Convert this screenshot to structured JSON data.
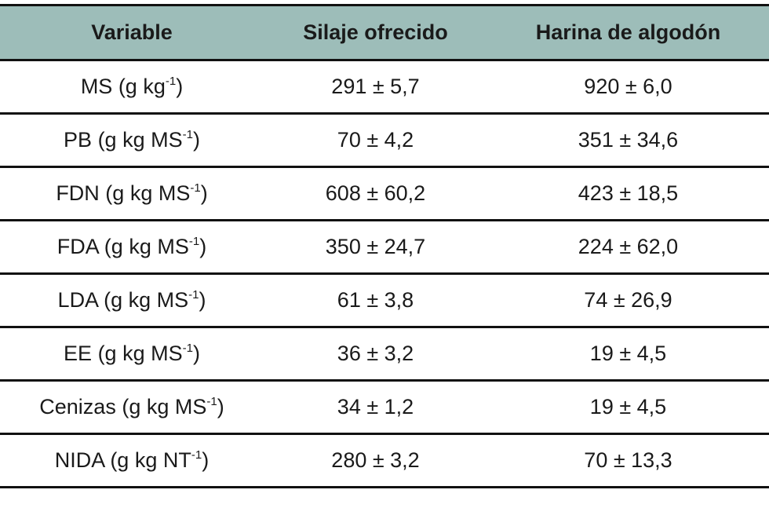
{
  "table": {
    "columns": [
      "Variable",
      "Silaje ofrecido",
      "Harina de algodón"
    ],
    "rows": [
      {
        "label": "MS (g kg",
        "exp": "-1",
        "suffix": ")",
        "silaje": "291 ± 5,7",
        "harina": "920 ± 6,0"
      },
      {
        "label": "PB (g kg MS",
        "exp": "-1",
        "suffix": ")",
        "silaje": "70 ± 4,2",
        "harina": "351 ± 34,6"
      },
      {
        "label": "FDN (g kg MS",
        "exp": "-1",
        "suffix": ")",
        "silaje": "608 ± 60,2",
        "harina": "423 ± 18,5"
      },
      {
        "label": "FDA (g kg MS",
        "exp": "-1",
        "suffix": ")",
        "silaje": "350 ± 24,7",
        "harina": "224 ± 62,0"
      },
      {
        "label": "LDA (g kg MS",
        "exp": "-1",
        "suffix": ")",
        "silaje": "61 ± 3,8",
        "harina": "74 ± 26,9"
      },
      {
        "label": "EE (g kg MS",
        "exp": "-1",
        "suffix": ")",
        "silaje": "36 ± 3,2",
        "harina": "19 ± 4,5"
      },
      {
        "label": "Cenizas (g kg MS",
        "exp": "-1",
        "suffix": ")",
        "silaje": "34 ± 1,2",
        "harina": "19 ± 4,5"
      },
      {
        "label": "NIDA (g kg NT",
        "exp": "-1",
        "suffix": ")",
        "silaje": "280 ± 3,2",
        "harina": "70 ± 13,3"
      }
    ]
  }
}
